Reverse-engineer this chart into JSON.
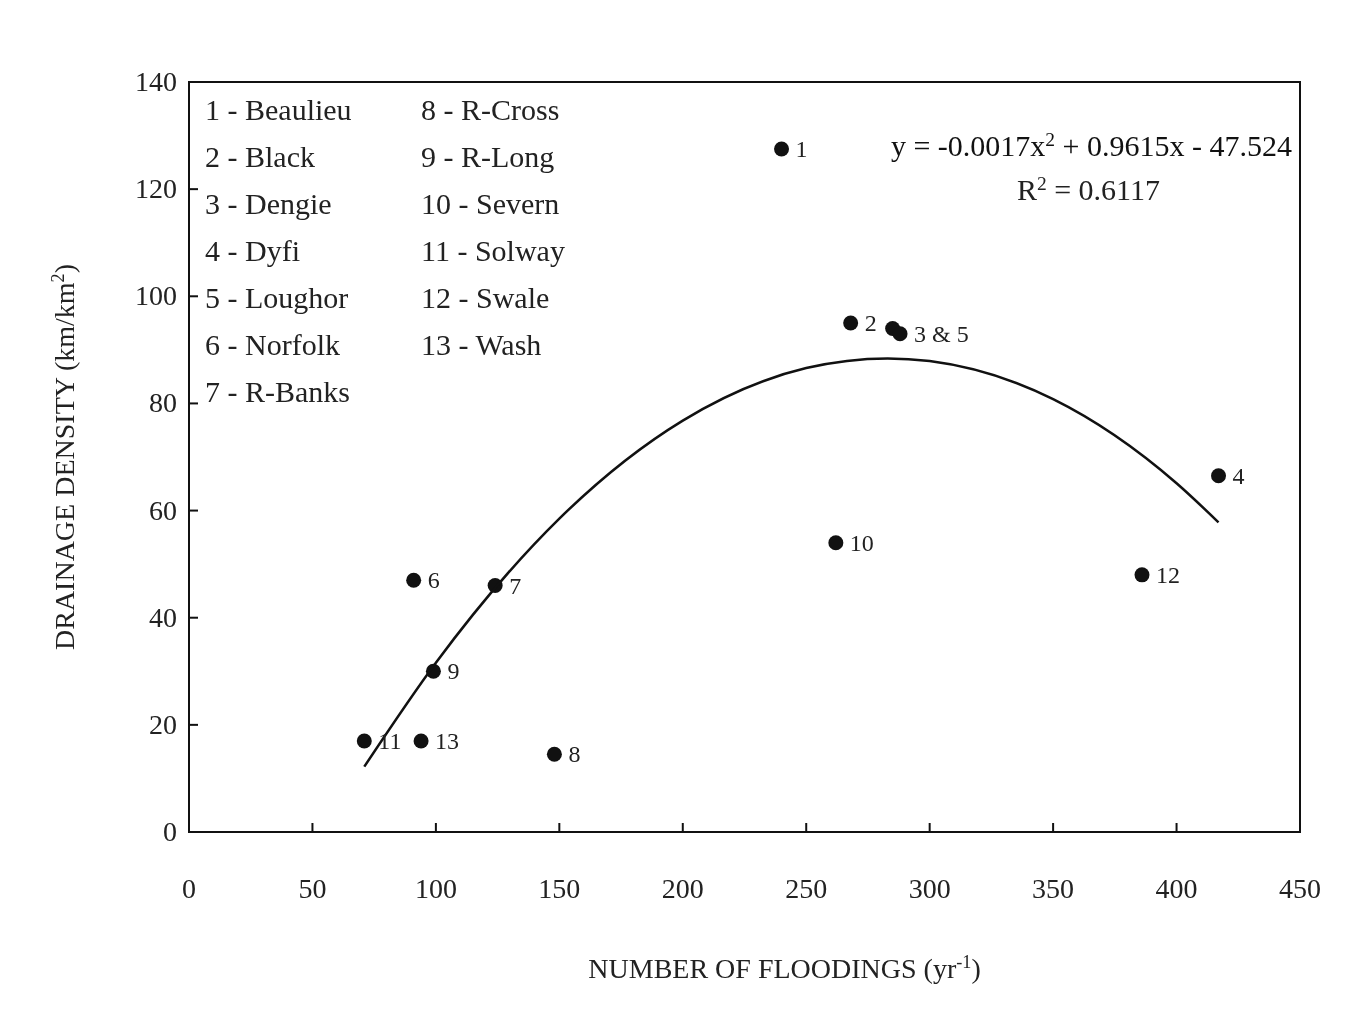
{
  "chart_data": {
    "type": "scatter",
    "subtitle": "R$^{2}$ = 0.6117",
    "xlabel": "NUMBER OF FLOODINGS (yr$^{-1}$)",
    "ylabel": "DRAINAGE DENSITY (km/km$^{2}$)",
    "xlim": [
      0,
      450
    ],
    "xticks": [
      0,
      50,
      100,
      150,
      200,
      250,
      300,
      350,
      400,
      450
    ],
    "ylim": [
      0,
      140
    ],
    "yticks": [
      0,
      20,
      40,
      60,
      80,
      100,
      120,
      140
    ],
    "grid": false,
    "marker": "circle",
    "series": [
      {
        "color": "#111111",
        "x": [
          240,
          268,
          285,
          417,
          288,
          91,
          124,
          148,
          99,
          262,
          71,
          386,
          94
        ],
        "values": [
          127.5,
          95,
          94,
          66.5,
          93,
          47,
          46,
          14.5,
          30,
          54,
          17,
          48,
          17
        ]
      },
      {
        "type": "line",
        "name": "y = -0.0017x$^{2}$ + 0.9615x - 47.524",
        "color": "#111111",
        "marker": "none",
        "line_style": "solid",
        "x": [
          71,
          100,
          150,
          200,
          250,
          283,
          300,
          350,
          400,
          417
        ],
        "values": [
          12.2,
          31.6,
          58.5,
          76.8,
          86.6,
          88.4,
          87.9,
          80.8,
          65.1,
          57.8
        ]
      }
    ],
    "annotations": [
      "1 - Beaulieu",
      "2 - Black",
      "3 - Dengie",
      "4 - Dyfi",
      "5 - Loughor",
      "6 - Norfolk",
      "7 - R-Banks",
      "8 - R-Cross",
      "9 - R-Long",
      "10 - Severn",
      "11 - Solway",
      "12 - Swale",
      "13 - Wash",
      {
        "text": "1",
        "x": 240,
        "y": 127.5
      },
      {
        "text": "2",
        "x": 268,
        "y": 95
      },
      {
        "text": "3 & 5",
        "x": 288,
        "y": 93
      },
      {
        "text": "4",
        "x": 417,
        "y": 66.5
      },
      {
        "text": "6",
        "x": 91,
        "y": 47
      },
      {
        "text": "7",
        "x": 124,
        "y": 46
      },
      {
        "text": "8",
        "x": 148,
        "y": 14.5
      },
      {
        "text": "9",
        "x": 99,
        "y": 30
      },
      {
        "text": "10",
        "x": 262,
        "y": 54
      },
      {
        "text": "11",
        "x": 71,
        "y": 17
      },
      {
        "text": "12",
        "x": 386,
        "y": 48
      },
      {
        "text": "13",
        "x": 94,
        "y": 17
      }
    ]
  }
}
